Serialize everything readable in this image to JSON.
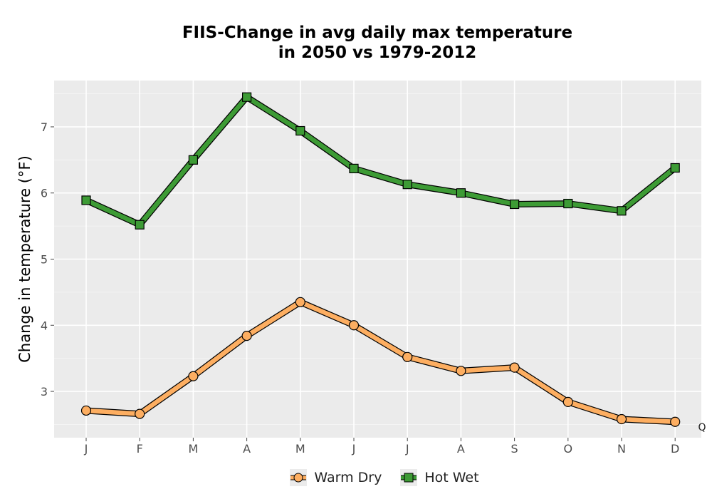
{
  "chart_data": {
    "type": "line",
    "title": [
      "FIIS-Change in avg daily max temperature",
      "in 2050 vs 1979-2012"
    ],
    "xlabel": "",
    "ylabel": "Change in temperature (°F)",
    "categories": [
      "J",
      "F",
      "M",
      "A",
      "M",
      "J",
      "J",
      "A",
      "S",
      "O",
      "N",
      "D"
    ],
    "ylim": [
      2.3,
      7.7
    ],
    "yticks": [
      3,
      4,
      5,
      6,
      7
    ],
    "grid": true,
    "legend_position": "bottom",
    "annotation": "Q",
    "series": [
      {
        "name": "Warm Dry",
        "marker": "circle",
        "color": "#fdae61",
        "values": [
          2.71,
          2.66,
          3.23,
          3.84,
          4.35,
          4.0,
          3.52,
          3.31,
          3.36,
          2.84,
          2.58,
          2.54
        ]
      },
      {
        "name": "Hot Wet",
        "marker": "square",
        "color": "#3d9b35",
        "values": [
          5.89,
          5.52,
          6.5,
          7.45,
          6.94,
          6.37,
          6.13,
          6.0,
          5.83,
          5.84,
          5.73,
          6.38
        ]
      }
    ]
  }
}
